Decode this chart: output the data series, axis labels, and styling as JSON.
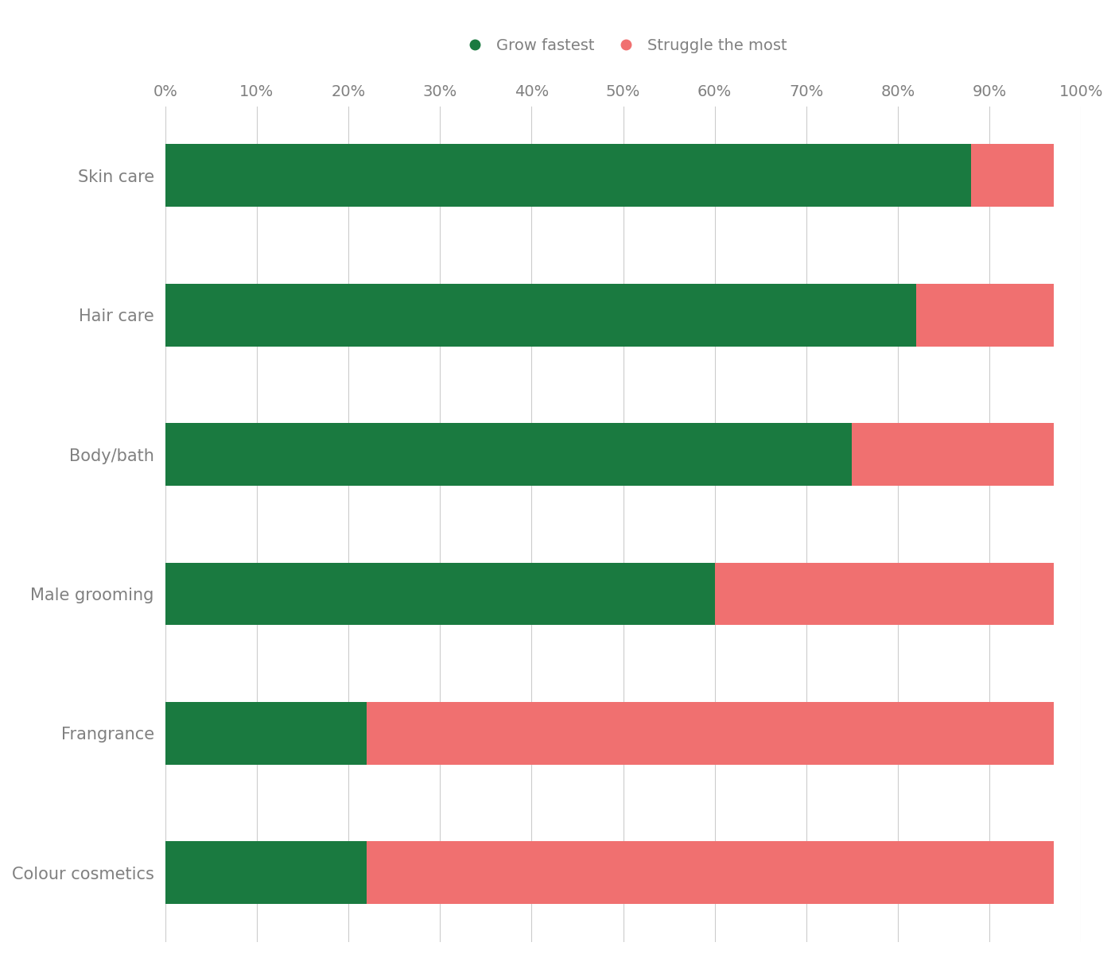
{
  "categories": [
    "Skin care",
    "Hair care",
    "Body/bath",
    "Male grooming",
    "Frangrance",
    "Colour cosmetics"
  ],
  "grow_fastest": [
    88,
    82,
    75,
    60,
    22,
    22
  ],
  "struggle_most": [
    9,
    15,
    22,
    37,
    75,
    75
  ],
  "green_color": "#1a7a40",
  "pink_color": "#f07070",
  "background_color": "#ffffff",
  "legend_grow": "Grow fastest",
  "legend_struggle": "Struggle the most",
  "x_ticks": [
    0,
    10,
    20,
    30,
    40,
    50,
    60,
    70,
    80,
    90,
    100
  ],
  "x_tick_labels": [
    "0%",
    "10%",
    "20%",
    "30%",
    "40%",
    "50%",
    "60%",
    "70%",
    "80%",
    "90%",
    "100%"
  ],
  "bar_height": 0.45,
  "figsize": [
    14.02,
    12.0
  ],
  "dpi": 100,
  "label_fontsize": 15,
  "tick_fontsize": 14,
  "legend_fontsize": 14
}
